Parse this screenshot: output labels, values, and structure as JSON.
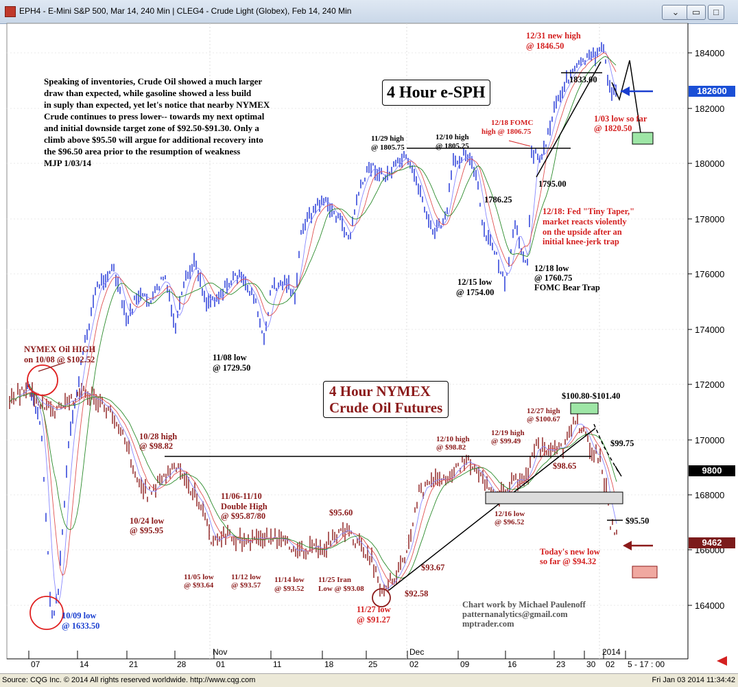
{
  "window": {
    "title": "EPH4 - E-Mini S&P 500, Mar 14, 240 Min   |   CLEG4 - Crude Light (Globex), Feb 14, 240 Min",
    "buttons": [
      "restore-down",
      "minimize",
      "maximize",
      "close"
    ]
  },
  "status": {
    "left": "Source: CQG Inc. © 2014 All rights reserved worldwide. http://www.cqg.com",
    "right": "Fri Jan 03 2014 11:34:42"
  },
  "axis": {
    "price_ticks": [
      "184000",
      "182000",
      "180000",
      "178000",
      "176000",
      "174000",
      "172000",
      "170000",
      "168000",
      "166000",
      "164000"
    ],
    "months": [
      "Nov",
      "Dec",
      "2014"
    ],
    "days": [
      "07",
      "14",
      "21",
      "28",
      "01",
      "11",
      "18",
      "25",
      "02",
      "09",
      "16",
      "23",
      "30",
      "02",
      "5 - 17 : 00"
    ],
    "tags": [
      {
        "label": "182600",
        "bg": "#1a4fd6",
        "fg": "#ffffff"
      },
      {
        "label": "9800",
        "bg": "#000000",
        "fg": "#ffffff"
      },
      {
        "label": "9462",
        "bg": "#7b1b1b",
        "fg": "#ffffff"
      }
    ]
  },
  "chart_data": [
    {
      "type": "line",
      "title": "4 Hour e-SPH",
      "y_range": [
        1633.5,
        1846.5
      ],
      "key_points": [
        {
          "label": "10/09 low",
          "value": 1633.5
        },
        {
          "label": "11/08 low",
          "value": 1729.5
        },
        {
          "label": "11/29 high",
          "value": 1805.75
        },
        {
          "label": "12/10 high",
          "value": 1805.25
        },
        {
          "label": "12/15 low",
          "value": 1754.0
        },
        {
          "label": "12/18 low",
          "value": 1760.75
        },
        {
          "label": "12/18 FOMC high",
          "value": 1806.75
        },
        {
          "label": "12/31 new high",
          "value": 1846.5
        },
        {
          "label": "1/03 low so far",
          "value": 1820.5
        }
      ]
    },
    {
      "type": "line",
      "title": "4 Hour NYMEX Crude Oil Futures",
      "key_points": [
        {
          "label": "NYMEX Oil HIGH on 10/08",
          "value": 102.52
        },
        {
          "label": "10/28 high",
          "value": 98.82
        },
        {
          "label": "10/24 low",
          "value": 95.95
        },
        {
          "label": "11/05 low",
          "value": 93.64
        },
        {
          "label": "11/06-11/10 Double High",
          "value": 95.87
        },
        {
          "label": "11/12 low",
          "value": 93.57
        },
        {
          "label": "11/14 low",
          "value": 93.52
        },
        {
          "label": "11/25 Iran Low",
          "value": 93.08
        },
        {
          "label": "11/27 low",
          "value": 91.27
        },
        {
          "label": "12/10 high",
          "value": 98.82
        },
        {
          "label": "12/16 low",
          "value": 96.52
        },
        {
          "label": "12/19 high",
          "value": 99.49
        },
        {
          "label": "12/27 high",
          "value": 100.67
        },
        {
          "label": "Today's new low so far",
          "value": 94.32
        }
      ]
    }
  ],
  "annotations": {
    "commentary": [
      "Speaking of inventories, Crude Oil showed a much larger",
      "draw than expected, while gasoline showed a less build",
      "in suply than expected, yet let's notice that nearby NYMEX",
      "Crude continues to press lower-- towards my next optimal",
      "and initial downside target zone of $92.50-$91.30. Only a",
      "climb above $95.50 will argue for additional recovery into",
      "the $96.50 area prior to the resumption of weakness",
      "MJP  1/03/14"
    ],
    "spx_title": "4 Hour e-SPH",
    "crude_title": [
      "4 Hour NYMEX",
      "Crude Oil Futures"
    ],
    "spx_labels": [
      {
        "t": "12/31 new high",
        "c": "#d42020"
      },
      {
        "t": "@ 1846.50",
        "c": "#d42020"
      },
      {
        "t": "1833.00",
        "c": "#000"
      },
      {
        "t": "1/03 low so far",
        "c": "#d42020"
      },
      {
        "t": "@ 1820.50",
        "c": "#d42020"
      },
      {
        "t": "12/18 FOMC",
        "c": "#d42020"
      },
      {
        "t": "high @ 1806.75",
        "c": "#d42020"
      },
      {
        "t": "11/29 high",
        "c": "#000"
      },
      {
        "t": "@ 1805.75",
        "c": "#000"
      },
      {
        "t": "12/10 high",
        "c": "#000"
      },
      {
        "t": "@ 1805.25",
        "c": "#000"
      },
      {
        "t": "1795.00",
        "c": "#000"
      },
      {
        "t": "1786.25",
        "c": "#000"
      },
      {
        "t": "12/18: Fed \"Tiny Taper,\"",
        "c": "#d42020"
      },
      {
        "t": "market reacts violently",
        "c": "#d42020"
      },
      {
        "t": "on the upside after an",
        "c": "#d42020"
      },
      {
        "t": "initial knee-jerk trap",
        "c": "#d42020"
      },
      {
        "t": "12/15 low",
        "c": "#000"
      },
      {
        "t": "@ 1754.00",
        "c": "#000"
      },
      {
        "t": "12/18 low",
        "c": "#000"
      },
      {
        "t": "@ 1760.75",
        "c": "#000"
      },
      {
        "t": "FOMC Bear Trap",
        "c": "#000"
      },
      {
        "t": "11/08 low",
        "c": "#000"
      },
      {
        "t": "@ 1729.50",
        "c": "#000"
      },
      {
        "t": "10/09 low",
        "c": "#1a3fd0"
      },
      {
        "t": "@ 1633.50",
        "c": "#1a3fd0"
      }
    ],
    "crude_labels": [
      {
        "t": "NYMEX Oil HIGH",
        "c": "#8b1a1a"
      },
      {
        "t": "on 10/08 @ $102.52",
        "c": "#8b1a1a"
      },
      {
        "t": "10/28 high",
        "c": "#8b1a1a"
      },
      {
        "t": "@ $98.82",
        "c": "#8b1a1a"
      },
      {
        "t": "10/24 low",
        "c": "#8b1a1a"
      },
      {
        "t": "@ $95.95",
        "c": "#8b1a1a"
      },
      {
        "t": "11/06-11/10",
        "c": "#8b1a1a"
      },
      {
        "t": "Double High",
        "c": "#8b1a1a"
      },
      {
        "t": "@ $95.87/80",
        "c": "#8b1a1a"
      },
      {
        "t": "$95.60",
        "c": "#8b1a1a"
      },
      {
        "t": "11/05 low",
        "c": "#8b1a1a"
      },
      {
        "t": "@ $93.64",
        "c": "#8b1a1a"
      },
      {
        "t": "11/12 low",
        "c": "#8b1a1a"
      },
      {
        "t": "@ $93.57",
        "c": "#8b1a1a"
      },
      {
        "t": "11/14 low",
        "c": "#8b1a1a"
      },
      {
        "t": "@ $93.52",
        "c": "#8b1a1a"
      },
      {
        "t": "11/25 Iran",
        "c": "#8b1a1a"
      },
      {
        "t": "Low @ $93.08",
        "c": "#8b1a1a"
      },
      {
        "t": "11/27 low",
        "c": "#d42020"
      },
      {
        "t": "@ $91.27",
        "c": "#d42020"
      },
      {
        "t": "$92.58",
        "c": "#8b1a1a"
      },
      {
        "t": "$93.67",
        "c": "#8b1a1a"
      },
      {
        "t": "12/10 high",
        "c": "#8b1a1a"
      },
      {
        "t": "@ $98.82",
        "c": "#8b1a1a"
      },
      {
        "t": "12/19 high",
        "c": "#8b1a1a"
      },
      {
        "t": "@ $99.49",
        "c": "#8b1a1a"
      },
      {
        "t": "12/27 high",
        "c": "#8b1a1a"
      },
      {
        "t": "@ $100.67",
        "c": "#8b1a1a"
      },
      {
        "t": "$100.80-$101.40",
        "c": "#000"
      },
      {
        "t": "$99.75",
        "c": "#000"
      },
      {
        "t": "$98.65",
        "c": "#8b1a1a"
      },
      {
        "t": "12/16 low",
        "c": "#8b1a1a"
      },
      {
        "t": "@ $96.52",
        "c": "#8b1a1a"
      },
      {
        "t": "$95.50",
        "c": "#000"
      },
      {
        "t": "Today's new low",
        "c": "#d42020"
      },
      {
        "t": "so far @ $94.32",
        "c": "#d42020"
      }
    ],
    "credits": [
      "Chart work by Michael Paulenoff",
      "patternanalytics@gmail.com",
      "mptrader.com"
    ]
  },
  "colors": {
    "spx_bars": "#1a2fd6",
    "crude_bars": "#8b1a1a",
    "ma_fast": "#e05050",
    "ma_mid": "#2a8a2a",
    "ma_slow": "#8888ff",
    "target_box_green": "#9ee6a6",
    "target_box_red": "#f0a8a0"
  }
}
